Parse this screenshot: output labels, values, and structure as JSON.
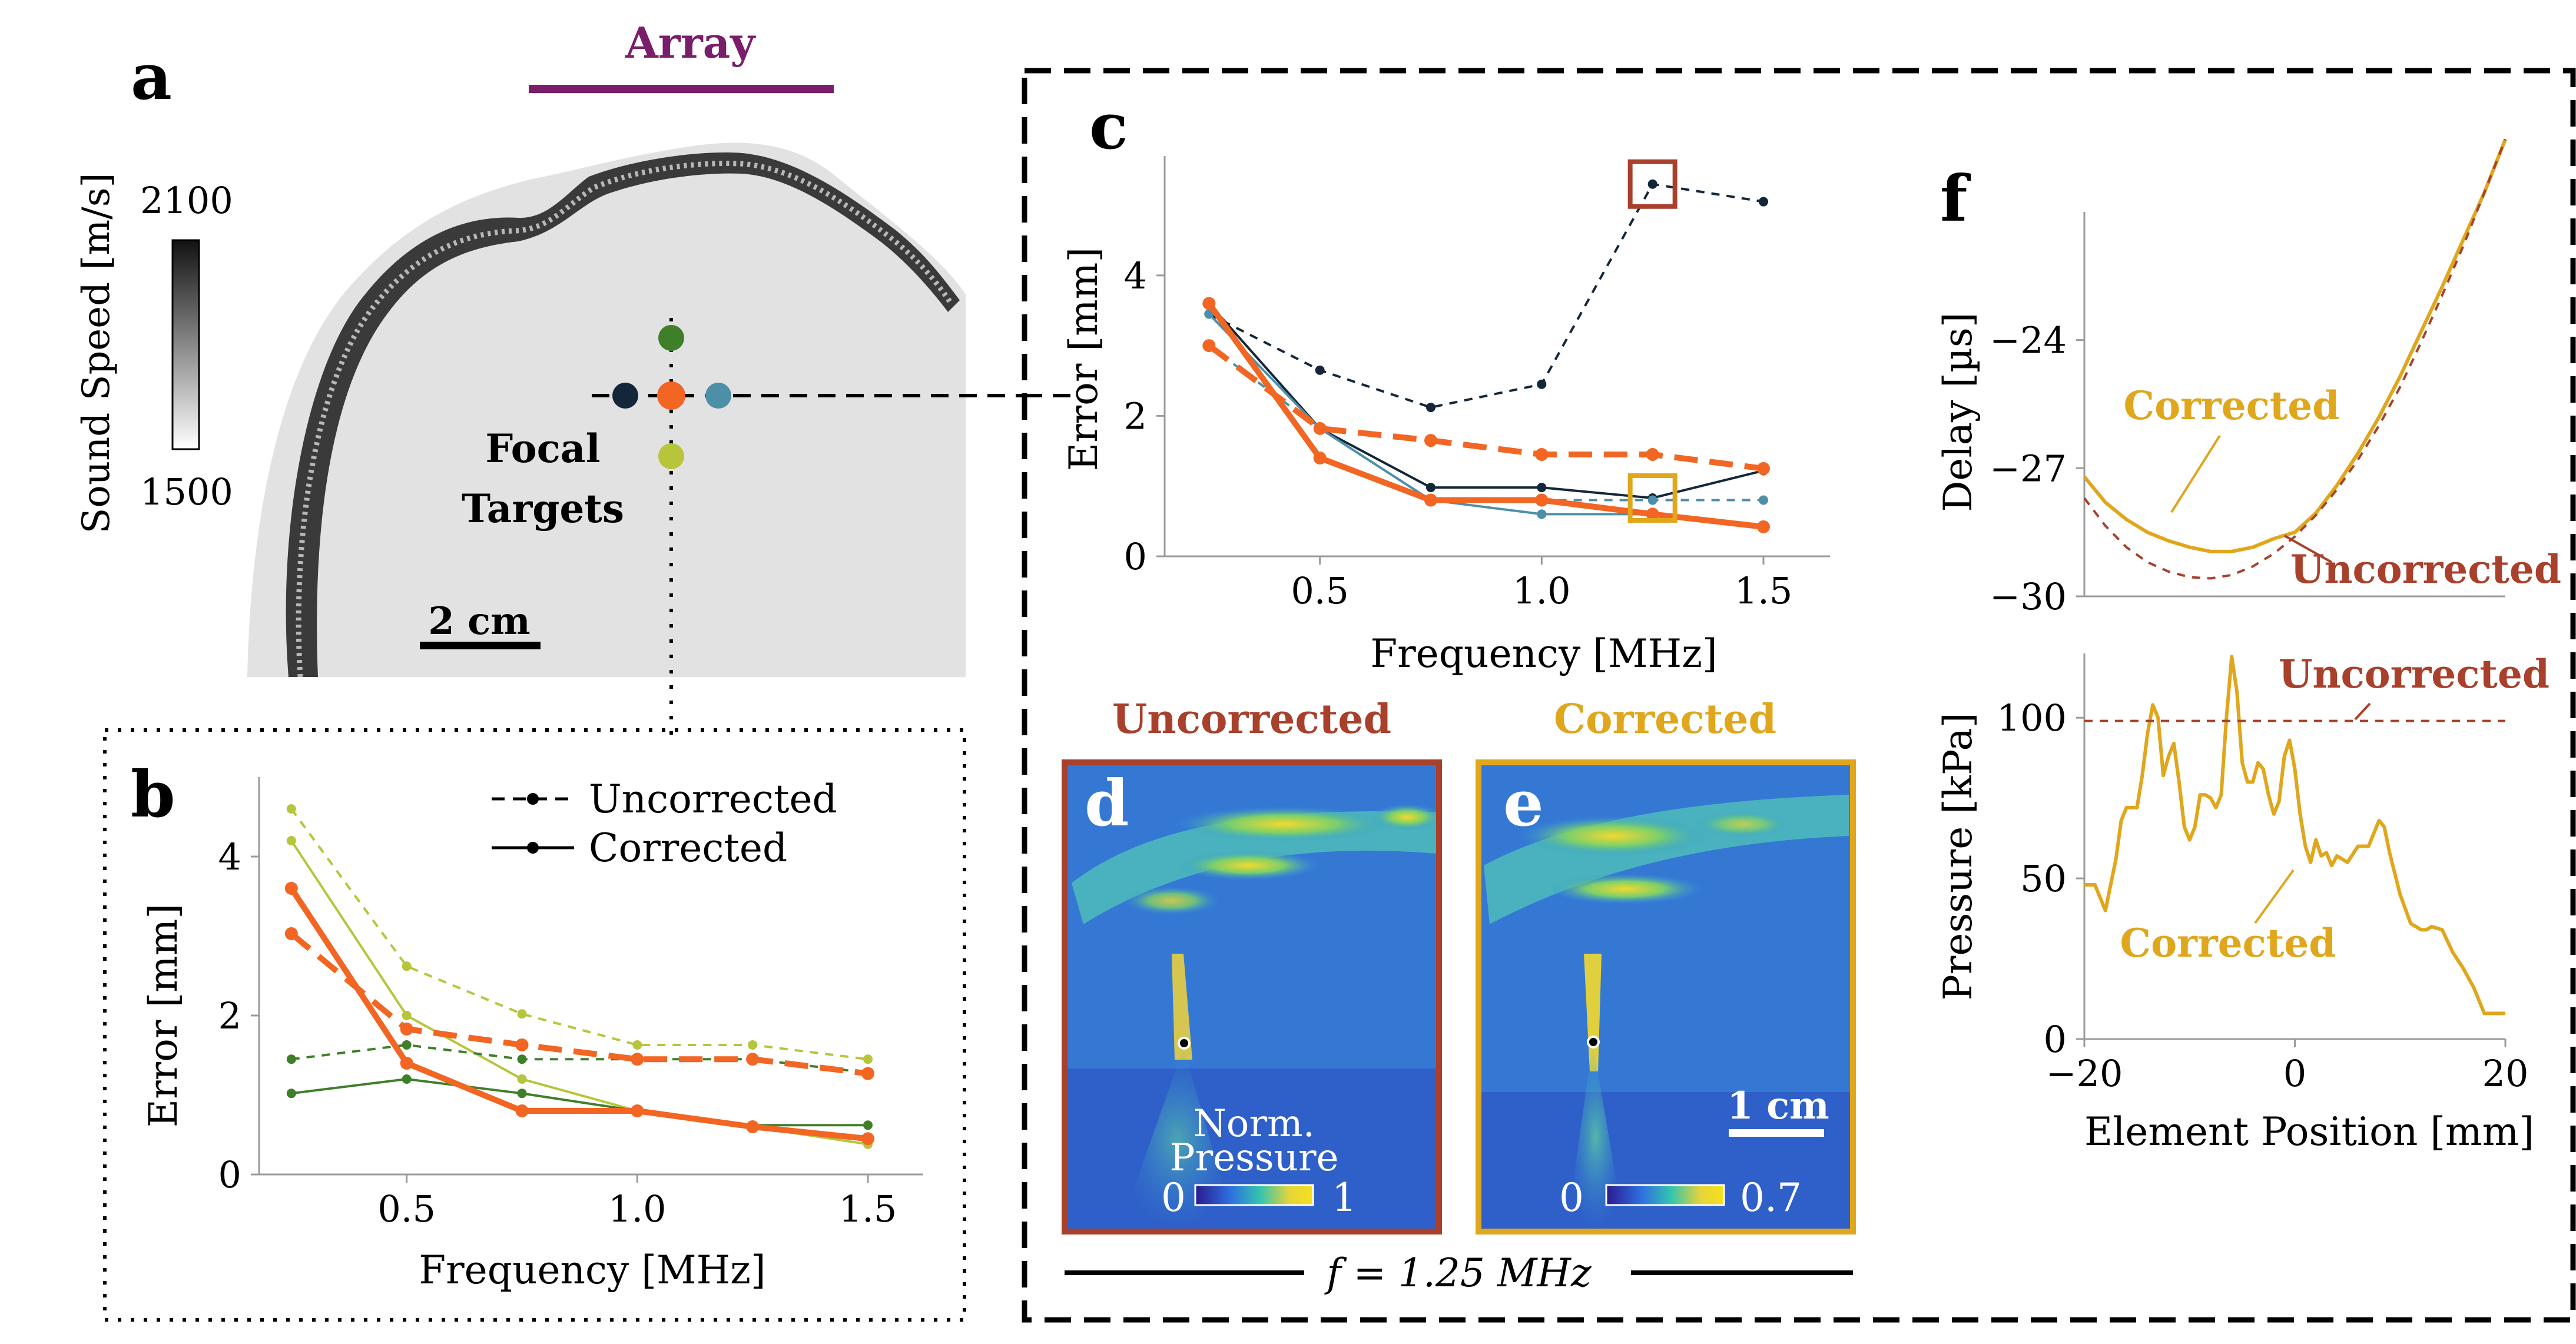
{
  "colors": {
    "purple": "#7a1d6b",
    "orange": "#f26522",
    "dark_navy": "#14263a",
    "teal": "#4e8fa8",
    "green": "#3f7f2a",
    "light_green": "#b6c53a",
    "brown": "#a8402c",
    "gold": "#e0a61c"
  },
  "panel_a": {
    "letter": "a",
    "array_label": "Array",
    "colorbar_label": "Sound Speed [m/s]",
    "colorbar_max": "2100",
    "colorbar_min": "1500",
    "focal_label_line1": "Focal",
    "focal_label_line2": "Targets",
    "scale_label": "2 cm"
  },
  "panel_d": {
    "letter": "d",
    "title": "Uncorrected",
    "cbar_title_line1": "Norm.",
    "cbar_title_line2": "Pressure",
    "cbar_min": "0",
    "cbar_max": "1"
  },
  "panel_e": {
    "letter": "e",
    "title": "Corrected",
    "scale_label": "1 cm",
    "cbar_min": "0",
    "cbar_max": "0.7"
  },
  "freq_label": "f = 1.25 MHz",
  "chart_data": [
    {
      "id": "b",
      "letter": "b",
      "type": "line",
      "xlabel": "Frequency [MHz]",
      "ylabel": "Error [mm]",
      "xlim": [
        0.18,
        1.62
      ],
      "ylim": [
        0,
        5.0
      ],
      "xticks": [
        "0.5",
        "1.0",
        "1.5"
      ],
      "yticks": [
        "0",
        "2",
        "4"
      ],
      "legend": [
        {
          "label": "Uncorrected",
          "style": "dashed"
        },
        {
          "label": "Corrected",
          "style": "solid"
        }
      ],
      "x": [
        0.25,
        0.5,
        0.75,
        1.0,
        1.25,
        1.5
      ],
      "series": [
        {
          "name": "light-green uncorrected",
          "color": "#b6c53a",
          "dash": true,
          "width": 4,
          "values": [
            4.6,
            2.62,
            2.02,
            1.63,
            1.63,
            1.45
          ]
        },
        {
          "name": "light-green corrected",
          "color": "#b6c53a",
          "dash": false,
          "width": 4,
          "values": [
            4.2,
            2.0,
            1.2,
            0.8,
            0.6,
            0.38
          ]
        },
        {
          "name": "green uncorrected",
          "color": "#3f7f2a",
          "dash": true,
          "width": 4,
          "values": [
            1.45,
            1.63,
            1.45,
            1.45,
            1.45,
            1.28
          ]
        },
        {
          "name": "green corrected",
          "color": "#3f7f2a",
          "dash": false,
          "width": 4,
          "values": [
            1.02,
            1.2,
            1.02,
            0.8,
            0.62,
            0.62
          ]
        },
        {
          "name": "orange uncorrected",
          "color": "#f26522",
          "dash": true,
          "width": 10,
          "values": [
            3.03,
            1.83,
            1.63,
            1.45,
            1.45,
            1.27
          ]
        },
        {
          "name": "orange corrected",
          "color": "#f26522",
          "dash": false,
          "width": 10,
          "values": [
            3.6,
            1.4,
            0.8,
            0.8,
            0.6,
            0.45
          ]
        }
      ]
    },
    {
      "id": "c",
      "letter": "c",
      "type": "line",
      "xlabel": "Frequency [MHz]",
      "ylabel": "Error [mm]",
      "xlim": [
        0.15,
        1.65
      ],
      "ylim": [
        0,
        5.7
      ],
      "xticks": [
        "0.5",
        "1.0",
        "1.5"
      ],
      "yticks": [
        "0",
        "2",
        "4"
      ],
      "x": [
        0.25,
        0.5,
        0.75,
        1.0,
        1.25,
        1.5
      ],
      "series": [
        {
          "name": "navy uncorrected",
          "color": "#14263a",
          "dash": true,
          "width": 4,
          "values": [
            3.45,
            2.65,
            2.12,
            2.45,
            5.3,
            5.05
          ]
        },
        {
          "name": "navy corrected",
          "color": "#14263a",
          "dash": false,
          "width": 4,
          "values": [
            3.6,
            1.82,
            0.98,
            0.98,
            0.83,
            1.22
          ]
        },
        {
          "name": "teal uncorrected",
          "color": "#4e8fa8",
          "dash": true,
          "width": 4,
          "values": [
            3.0,
            1.82,
            0.8,
            0.8,
            0.8,
            0.8
          ]
        },
        {
          "name": "teal corrected",
          "color": "#4e8fa8",
          "dash": false,
          "width": 4,
          "values": [
            3.45,
            1.82,
            0.8,
            0.6,
            0.6,
            0.42
          ]
        },
        {
          "name": "orange uncorrected",
          "color": "#f26522",
          "dash": true,
          "width": 10,
          "values": [
            3.0,
            1.82,
            1.65,
            1.45,
            1.45,
            1.25
          ]
        },
        {
          "name": "orange corrected",
          "color": "#f26522",
          "dash": false,
          "width": 10,
          "values": [
            3.6,
            1.4,
            0.8,
            0.8,
            0.6,
            0.42
          ]
        }
      ],
      "highlights": [
        {
          "label": "uncorrected focus",
          "x": 1.25,
          "y": 5.3,
          "color": "#a8402c"
        },
        {
          "label": "corrected focus",
          "x": 1.25,
          "y": 0.83,
          "color": "#e0a61c"
        }
      ]
    },
    {
      "id": "f_delay",
      "letter": "f",
      "type": "line",
      "xlabel": "",
      "ylabel": "Delay [µs]",
      "xlim": [
        -20,
        20
      ],
      "ylim": [
        -30,
        -21
      ],
      "yticks": [
        "−24",
        "−27",
        "−30"
      ],
      "x": [
        -20,
        -18,
        -16,
        -14,
        -12,
        -10,
        -8,
        -6,
        -4,
        -2,
        0,
        2,
        4,
        6,
        8,
        10,
        12,
        14,
        16,
        18,
        20
      ],
      "series": [
        {
          "name": "Corrected",
          "color": "#e0a61c",
          "dash": false,
          "width": 6,
          "values": [
            -27.2,
            -27.8,
            -28.2,
            -28.5,
            -28.7,
            -28.85,
            -28.95,
            -28.95,
            -28.85,
            -28.65,
            -28.5,
            -28.05,
            -27.4,
            -26.65,
            -25.8,
            -24.85,
            -23.8,
            -22.75,
            -21.65,
            -20.55,
            -19.3
          ]
        },
        {
          "name": "Uncorrected",
          "color": "#a8402c",
          "dash": true,
          "width": 4,
          "values": [
            -27.7,
            -28.35,
            -28.85,
            -29.2,
            -29.42,
            -29.55,
            -29.58,
            -29.5,
            -29.3,
            -29.0,
            -28.6,
            -28.1,
            -27.5,
            -26.8,
            -26.0,
            -25.1,
            -24.05,
            -22.95,
            -21.8,
            -20.55,
            -19.3
          ]
        }
      ],
      "annotations": [
        "Corrected",
        "Uncorrected"
      ]
    },
    {
      "id": "f_pressure",
      "type": "line",
      "xlabel": "Element Position [mm]",
      "ylabel": "Pressure [kPa]",
      "xlim": [
        -20,
        20
      ],
      "ylim": [
        0,
        120
      ],
      "xticks": [
        "−20",
        "0",
        "20"
      ],
      "yticks": [
        "0",
        "50",
        "100"
      ],
      "x": [
        -20,
        -19,
        -18,
        -17,
        -16.5,
        -16,
        -15,
        -14.5,
        -14,
        -13.5,
        -13,
        -12.5,
        -12,
        -11.5,
        -11,
        -10.5,
        -10,
        -9.5,
        -9,
        -8.5,
        -8,
        -7.5,
        -7,
        -6.5,
        -6,
        -5.5,
        -5,
        -4.5,
        -4,
        -3.5,
        -3,
        -2.5,
        -2,
        -1.5,
        -1,
        -0.5,
        0,
        0.5,
        1,
        1.5,
        2,
        2.5,
        3,
        3.5,
        4,
        5,
        6,
        7,
        7.5,
        8,
        8.5,
        9,
        10,
        11,
        12,
        12.5,
        13,
        14,
        15,
        16,
        17,
        18,
        19,
        20
      ],
      "series": [
        {
          "name": "Corrected",
          "color": "#e0a61c",
          "dash": false,
          "width": 6,
          "values": [
            48,
            48,
            40,
            56,
            68,
            72,
            72,
            82,
            95,
            104,
            100,
            82,
            88,
            92,
            80,
            66,
            62,
            66,
            76,
            76,
            75,
            72,
            76,
            100,
            119,
            108,
            86,
            80,
            80,
            86,
            84,
            76,
            70,
            74,
            88,
            93,
            84,
            70,
            60,
            55,
            62,
            57,
            58,
            54,
            57,
            55,
            60,
            60,
            64,
            68,
            66,
            58,
            45,
            36,
            34,
            34,
            35,
            34,
            27,
            22,
            16,
            8,
            8,
            8
          ]
        },
        {
          "name": "Uncorrected",
          "color": "#a8402c",
          "dash": true,
          "width": 4,
          "values": [
            99,
            99,
            99,
            99,
            99,
            99,
            99,
            99,
            99,
            99,
            99,
            99,
            99,
            99,
            99,
            99,
            99,
            99,
            99,
            99,
            99,
            99,
            99,
            99,
            99,
            99,
            99,
            99,
            99,
            99,
            99,
            99,
            99,
            99,
            99,
            99,
            99,
            99,
            99,
            99,
            99,
            99,
            99,
            99,
            99,
            99,
            99,
            99,
            99,
            99,
            99,
            99,
            99,
            99,
            99,
            99,
            99,
            99,
            99,
            99,
            99,
            99,
            99,
            99
          ]
        }
      ],
      "annotations": [
        "Uncorrected",
        "Corrected"
      ]
    }
  ]
}
